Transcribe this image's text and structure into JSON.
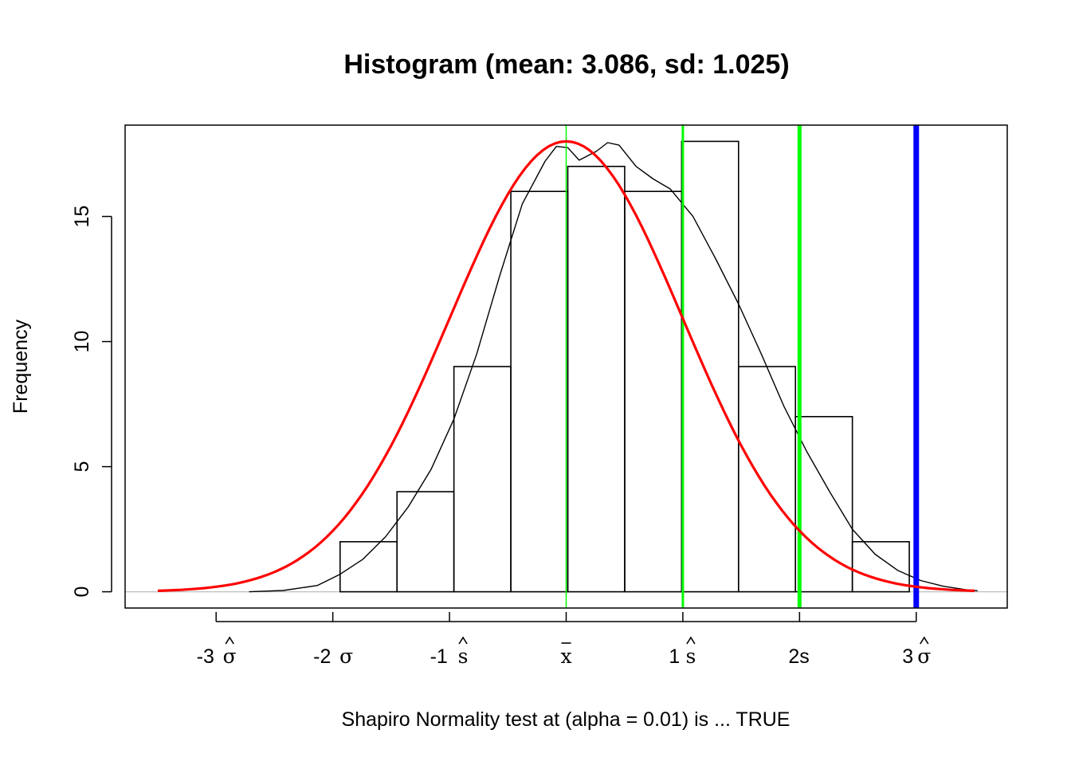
{
  "chart_data": {
    "type": "histogram",
    "title": "Histogram (mean: 3.086, sd: 1.025)",
    "xlabel": "Shapiro Normality test at (alpha = 0.01) is ... TRUE",
    "ylabel": "Frequency",
    "mean": 3.086,
    "sd": 1.025,
    "ylim": [
      -0.65,
      18.65
    ],
    "y_ticks": [
      0,
      5,
      10,
      15
    ],
    "x_ticks": [
      {
        "sd_units": -3,
        "num": "-3",
        "sym": "σ",
        "hat": true
      },
      {
        "sd_units": -2,
        "num": "-2",
        "sym": "σ",
        "hat": false
      },
      {
        "sd_units": -1,
        "num": "-1",
        "sym": "s",
        "hat": true
      },
      {
        "sd_units": 0,
        "num": "",
        "sym": "x",
        "bar": true
      },
      {
        "sd_units": 1,
        "num": "1",
        "sym": "s",
        "hat": true
      },
      {
        "sd_units": 2,
        "num": "2s",
        "sym": "",
        "hat": false
      },
      {
        "sd_units": 3,
        "num": "3",
        "sym": "σ",
        "hat": true
      }
    ],
    "bins": [
      {
        "from": 1.1,
        "to": 1.6,
        "count": 2
      },
      {
        "from": 1.6,
        "to": 2.1,
        "count": 4
      },
      {
        "from": 2.1,
        "to": 2.6,
        "count": 9
      },
      {
        "from": 2.6,
        "to": 3.1,
        "count": 16
      },
      {
        "from": 3.1,
        "to": 3.6,
        "count": 17
      },
      {
        "from": 3.6,
        "to": 4.1,
        "count": 16
      },
      {
        "from": 4.1,
        "to": 4.6,
        "count": 18
      },
      {
        "from": 4.6,
        "to": 5.1,
        "count": 9
      },
      {
        "from": 5.1,
        "to": 5.6,
        "count": 7
      },
      {
        "from": 5.6,
        "to": 6.1,
        "count": 2
      }
    ],
    "density_curve": {
      "x": [
        0.3,
        0.6,
        0.9,
        1.1,
        1.3,
        1.5,
        1.7,
        1.9,
        2.1,
        2.3,
        2.5,
        2.7,
        2.9,
        3.0,
        3.1,
        3.2,
        3.35,
        3.45,
        3.55,
        3.7,
        3.85,
        4.0,
        4.2,
        4.4,
        4.6,
        4.8,
        5.0,
        5.2,
        5.4,
        5.6,
        5.8,
        6.0,
        6.2,
        6.4,
        6.6,
        6.7
      ],
      "y": [
        0.0,
        0.05,
        0.25,
        0.7,
        1.3,
        2.2,
        3.4,
        4.9,
        6.9,
        9.5,
        12.6,
        15.5,
        17.2,
        17.8,
        17.75,
        17.25,
        17.6,
        17.95,
        17.85,
        17.0,
        16.5,
        16.1,
        15.0,
        13.3,
        11.5,
        9.5,
        7.4,
        5.6,
        4.0,
        2.5,
        1.5,
        0.85,
        0.45,
        0.22,
        0.08,
        0.04
      ]
    },
    "normal_curve": {
      "peak": 18.0,
      "from": -3.5,
      "to": 3.5
    },
    "vlines": [
      {
        "x": 3.086,
        "color": "#00FF00",
        "width": 1.5
      },
      {
        "x": 4.111,
        "color": "#00FF00",
        "width": 3
      },
      {
        "x": 5.136,
        "color": "#00FF00",
        "width": 5
      },
      {
        "x": 6.161,
        "color": "#0000FF",
        "width": 7
      }
    ],
    "colors": {
      "normal": "#FF0000",
      "density": "#000000",
      "bars": "#000000",
      "baseline": "#BEBEBE"
    }
  }
}
